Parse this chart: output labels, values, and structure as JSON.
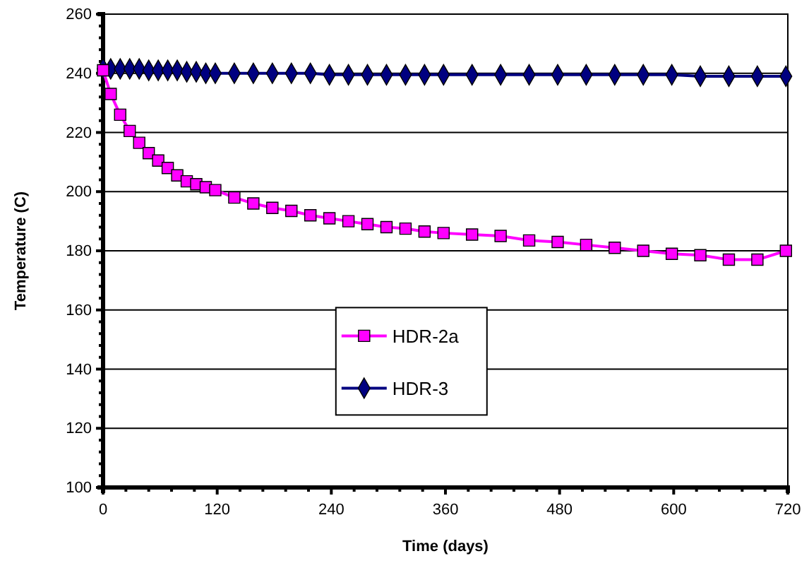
{
  "chart_data": {
    "type": "line",
    "xlabel": "Time (days)",
    "ylabel": "Temperature (C)",
    "x": [
      0,
      8,
      18,
      28,
      38,
      48,
      58,
      68,
      78,
      88,
      98,
      108,
      118,
      138,
      158,
      178,
      198,
      218,
      238,
      258,
      278,
      298,
      318,
      338,
      358,
      388,
      418,
      448,
      478,
      508,
      538,
      568,
      598,
      628,
      658,
      688,
      718
    ],
    "series": [
      {
        "name": "HDR-2a",
        "color": "#ff00ff",
        "marker": "square",
        "values": [
          241,
          233,
          226,
          220.5,
          216.5,
          213,
          210.5,
          208,
          205.5,
          203.5,
          202.5,
          201.5,
          200.5,
          198,
          196,
          194.5,
          193.5,
          192,
          191,
          190,
          189,
          188,
          187.5,
          186.5,
          186,
          185.5,
          185,
          183.5,
          183,
          182,
          181,
          180,
          179,
          178.5,
          177,
          177,
          180
        ]
      },
      {
        "name": "HDR-3",
        "color": "#000080",
        "marker": "diamond",
        "values": [
          241.5,
          241.5,
          241.5,
          241.5,
          241.5,
          241,
          241,
          241,
          241,
          240.5,
          240.5,
          240,
          240,
          240,
          240,
          240,
          240,
          240,
          239.5,
          239.5,
          239.5,
          239.5,
          239.5,
          239.5,
          239.5,
          239.5,
          239.5,
          239.5,
          239.5,
          239.5,
          239.5,
          239.5,
          239.5,
          239,
          239,
          239,
          239
        ]
      }
    ],
    "xlim": [
      0,
      720
    ],
    "xticks": [
      0,
      {
        "value": 24,
        "label": null
      },
      {
        "value": 48,
        "label": null
      },
      {
        "value": 72,
        "label": null
      },
      {
        "value": 96,
        "label": null
      },
      120,
      {
        "value": 144,
        "label": null
      },
      {
        "value": 168,
        "label": null
      },
      {
        "value": 192,
        "label": null
      },
      {
        "value": 216,
        "label": null
      },
      240,
      {
        "value": 264,
        "label": null
      },
      {
        "value": 288,
        "label": null
      },
      {
        "value": 312,
        "label": null
      },
      {
        "value": 336,
        "label": null
      },
      360,
      {
        "value": 384,
        "label": null
      },
      {
        "value": 408,
        "label": null
      },
      {
        "value": 432,
        "label": null
      },
      {
        "value": 456,
        "label": null
      },
      480,
      {
        "value": 504,
        "label": null
      },
      {
        "value": 528,
        "label": null
      },
      {
        "value": 552,
        "label": null
      },
      {
        "value": 576,
        "label": null
      },
      600,
      {
        "value": 624,
        "label": null
      },
      {
        "value": 648,
        "label": null
      },
      {
        "value": 672,
        "label": null
      },
      {
        "value": 696,
        "label": null
      },
      720
    ],
    "ylim": [
      100,
      260
    ],
    "yticks": [
      100,
      {
        "value": 104,
        "label": null
      },
      {
        "value": 108,
        "label": null
      },
      {
        "value": 112,
        "label": null
      },
      {
        "value": 116,
        "label": null
      },
      120,
      {
        "value": 124,
        "label": null
      },
      {
        "value": 128,
        "label": null
      },
      {
        "value": 132,
        "label": null
      },
      {
        "value": 136,
        "label": null
      },
      140,
      {
        "value": 144,
        "label": null
      },
      {
        "value": 148,
        "label": null
      },
      {
        "value": 152,
        "label": null
      },
      {
        "value": 156,
        "label": null
      },
      160,
      {
        "value": 164,
        "label": null
      },
      {
        "value": 168,
        "label": null
      },
      {
        "value": 172,
        "label": null
      },
      {
        "value": 176,
        "label": null
      },
      180,
      {
        "value": 184,
        "label": null
      },
      {
        "value": 188,
        "label": null
      },
      {
        "value": 192,
        "label": null
      },
      {
        "value": 196,
        "label": null
      },
      200,
      {
        "value": 204,
        "label": null
      },
      {
        "value": 208,
        "label": null
      },
      {
        "value": 212,
        "label": null
      },
      {
        "value": 216,
        "label": null
      },
      220,
      {
        "value": 224,
        "label": null
      },
      {
        "value": 228,
        "label": null
      },
      {
        "value": 232,
        "label": null
      },
      {
        "value": 236,
        "label": null
      },
      240,
      {
        "value": 244,
        "label": null
      },
      {
        "value": 248,
        "label": null
      },
      {
        "value": 252,
        "label": null
      },
      {
        "value": 256,
        "label": null
      },
      260
    ],
    "grid": "y",
    "legend": "center",
    "line_style": "solid"
  }
}
